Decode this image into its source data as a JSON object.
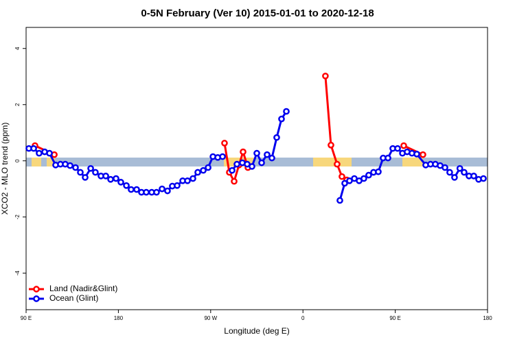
{
  "chart_data": {
    "type": "line",
    "title": "0-5N February (Ver 10)   2015-01-01 to 2020-12-18",
    "xlabel": "Longitude (deg E)",
    "ylabel": "XCO2 - MLO trend (ppm)",
    "xlim": [
      90,
      540
    ],
    "xticks": [
      {
        "value": 90,
        "label": "90 E"
      },
      180,
      {
        "value": 270,
        "label": "90 W"
      },
      {
        "value": 360,
        "label": "0"
      },
      {
        "value": 450,
        "label": "90 E"
      },
      {
        "value": 540,
        "label": "180"
      }
    ],
    "ylim": [
      -5.3,
      4.75
    ],
    "yticks": [
      -4,
      -2,
      0,
      2,
      4
    ],
    "legend": "bottom-left",
    "series": [
      {
        "name": "Land (Nadir&Glint)",
        "color": "#ff0000",
        "x": [
          98.7,
          117.5,
          null,
          283.5,
          288.2,
          292.9,
          297.6,
          301.6,
          306.3,
          null,
          381.9,
          387.3,
          393.3,
          398.0,
          402.7,
          null,
          458.3,
          477.0
        ],
        "values": [
          0.54,
          0.22,
          null,
          0.63,
          -0.41,
          -0.73,
          -0.15,
          0.32,
          -0.24,
          null,
          3.02,
          0.56,
          -0.12,
          -0.56,
          -0.68,
          null,
          0.54,
          0.22
        ]
      },
      {
        "name": "Ocean (Glint)",
        "color": "#0000ee",
        "x": [
          92.7,
          97.4,
          102.7,
          108.1,
          112.8,
          118.8,
          123.5,
          128.2,
          132.9,
          138.2,
          142.9,
          147.6,
          153.0,
          157.6,
          163.0,
          167.7,
          172.4,
          177.7,
          182.4,
          187.8,
          192.4,
          197.8,
          202.5,
          207.2,
          212.5,
          217.2,
          222.6,
          227.9,
          232.6,
          237.3,
          242.7,
          247.4,
          252.7,
          257.4,
          262.8,
          267.5,
          272.2,
          276.9,
          281.6,
          null,
          290.9,
          295.6,
          300.9,
          305.6,
          310.3,
          315.0,
          319.7,
          325.0,
          329.7,
          334.4,
          339.1,
          343.8,
          null,
          396.0,
          400.7,
          405.4,
          410.1,
          414.8,
          419.4,
          424.1,
          428.8,
          433.5,
          438.2,
          442.9,
          447.6,
          452.3,
          457.0,
          461.6,
          466.3,
          471.0,
          479.7,
          484.4,
          489.1,
          493.8,
          498.5,
          503.1,
          507.8,
          513.0,
          517.2,
          521.9,
          526.6,
          531.3,
          536.0
        ],
        "values": [
          0.44,
          0.44,
          0.27,
          0.32,
          0.27,
          -0.15,
          -0.12,
          -0.12,
          -0.17,
          -0.24,
          -0.41,
          -0.59,
          -0.27,
          -0.41,
          -0.54,
          -0.54,
          -0.66,
          -0.63,
          -0.76,
          -0.88,
          -1.02,
          -1.02,
          -1.12,
          -1.12,
          -1.12,
          -1.12,
          -1.0,
          -1.07,
          -0.9,
          -0.88,
          -0.71,
          -0.71,
          -0.63,
          -0.41,
          -0.34,
          -0.24,
          0.15,
          0.12,
          0.15,
          null,
          -0.34,
          -0.12,
          -0.07,
          -0.12,
          -0.2,
          0.27,
          -0.07,
          0.22,
          0.1,
          0.83,
          1.49,
          1.76,
          null,
          -1.41,
          -0.8,
          -0.71,
          -0.63,
          -0.71,
          -0.63,
          -0.51,
          -0.41,
          -0.39,
          0.1,
          0.1,
          0.44,
          0.44,
          0.27,
          0.32,
          0.27,
          0.24,
          -0.15,
          -0.12,
          -0.12,
          -0.17,
          -0.24,
          -0.41,
          -0.59,
          -0.27,
          -0.41,
          -0.54,
          -0.54,
          -0.66,
          -0.63
        ]
      }
    ]
  }
}
